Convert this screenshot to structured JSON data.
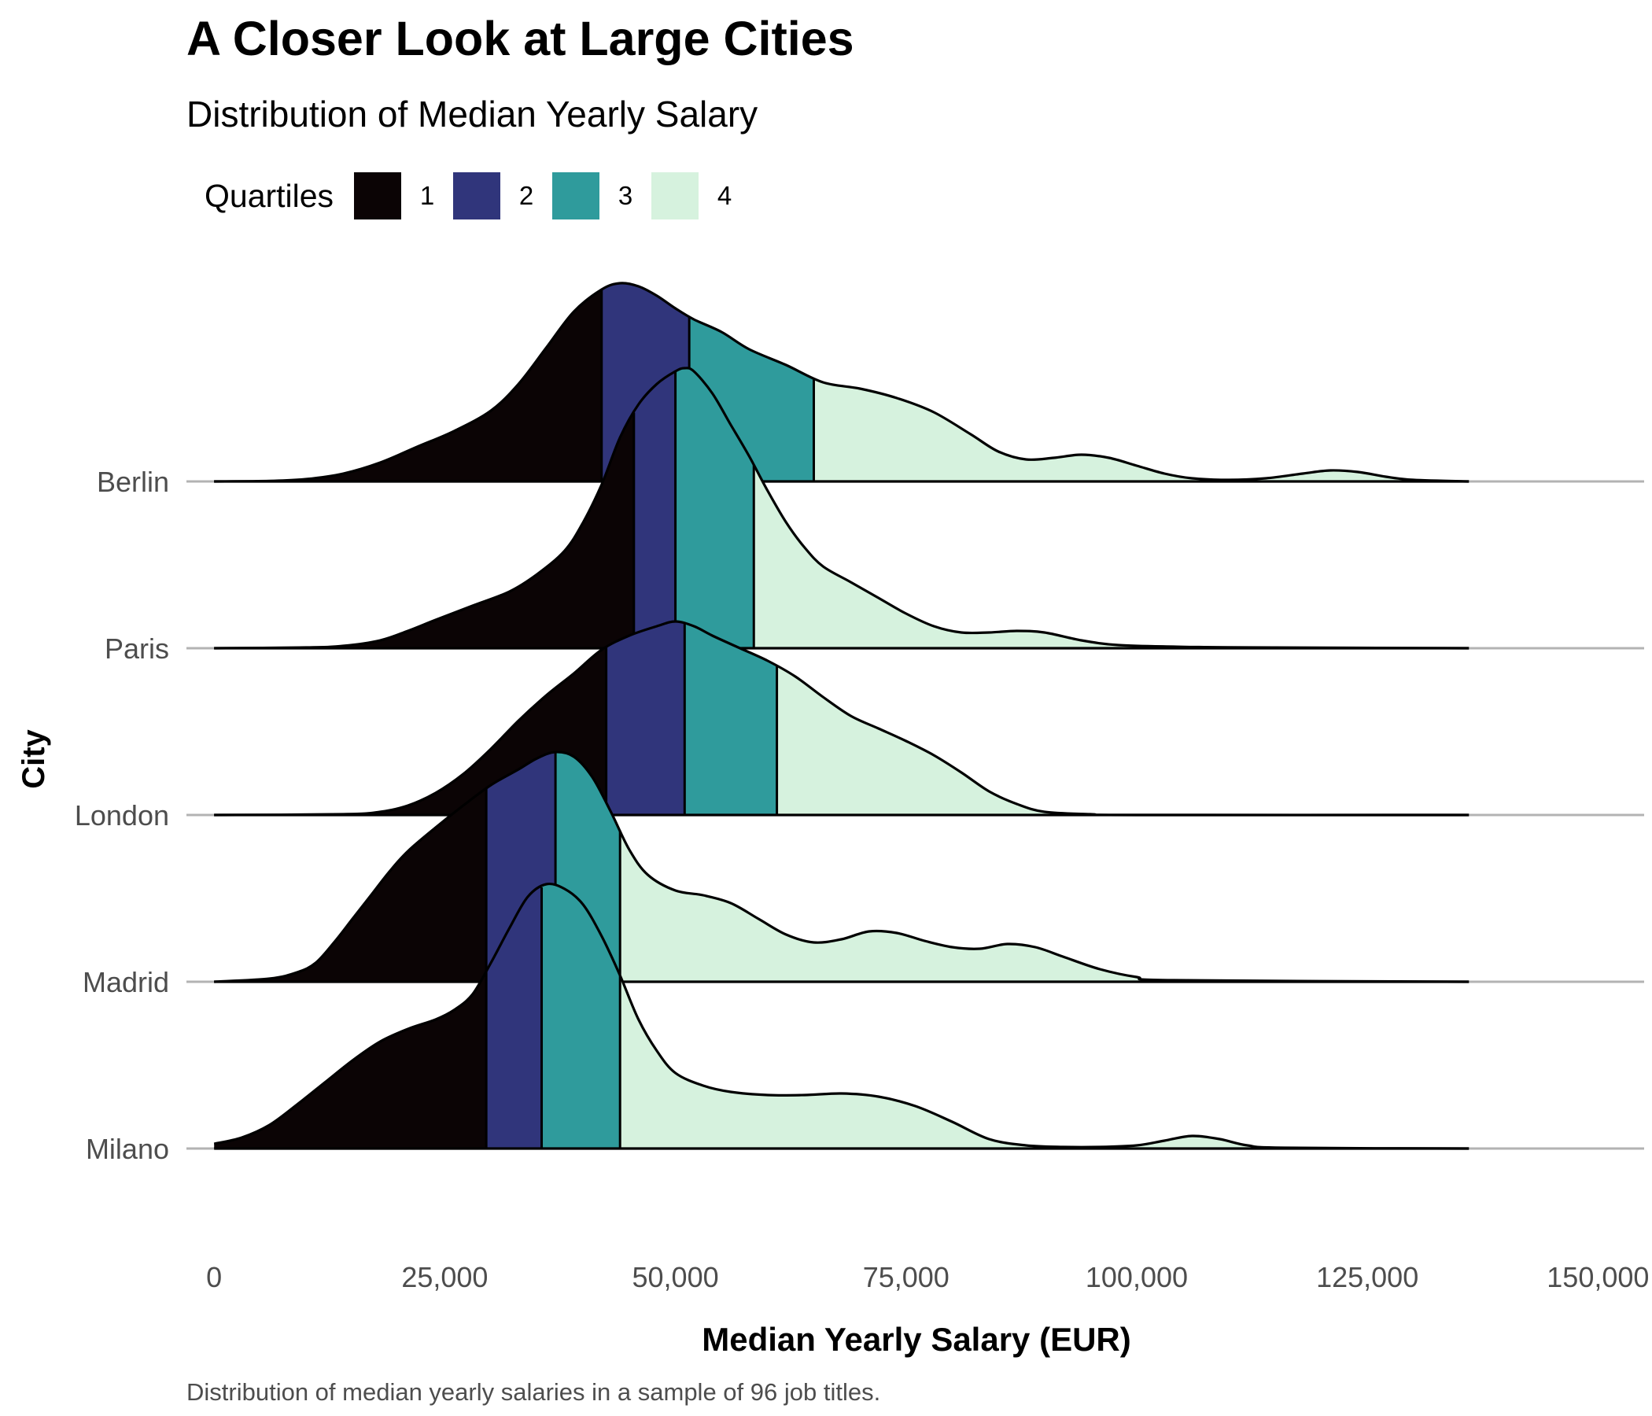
{
  "header": {
    "title": "A Closer Look at Large Cities",
    "subtitle": "Distribution of Median Yearly Salary"
  },
  "legend": {
    "title": "Quartiles",
    "items": [
      {
        "label": "1",
        "color": "#0b0405"
      },
      {
        "label": "2",
        "color": "#30357b"
      },
      {
        "label": "3",
        "color": "#2f9b9c"
      },
      {
        "label": "4",
        "color": "#d6f2de"
      }
    ]
  },
  "caption": "Distribution of median yearly salaries in a sample of 96 job titles.",
  "chart_data": {
    "type": "ridgeline",
    "title": "A Closer Look at Large Cities",
    "subtitle": "Distribution of Median Yearly Salary",
    "xlabel": "Median Yearly Salary (EUR)",
    "ylabel": "City",
    "xlim": [
      -3000,
      155000
    ],
    "x_ticks": [
      0,
      25000,
      50000,
      75000,
      100000,
      125000,
      150000
    ],
    "x_tick_labels": [
      "0",
      "25,000",
      "50,000",
      "75,000",
      "100,000",
      "125,000",
      "150,000"
    ],
    "density_range": [
      0,
      136000
    ],
    "categories": [
      "Milano",
      "Madrid",
      "London",
      "Paris",
      "Berlin"
    ],
    "series": [
      {
        "name": "Berlin",
        "quartile_breaks": [
          42000,
          51500,
          65000
        ],
        "density": [
          [
            0,
            0
          ],
          [
            6000,
            0.3
          ],
          [
            10000,
            1.5
          ],
          [
            14000,
            5
          ],
          [
            18000,
            12
          ],
          [
            22000,
            22
          ],
          [
            26000,
            32
          ],
          [
            30000,
            45
          ],
          [
            33000,
            62
          ],
          [
            36000,
            85
          ],
          [
            39000,
            108
          ],
          [
            42000,
            122
          ],
          [
            44000,
            126
          ],
          [
            46000,
            124
          ],
          [
            48000,
            118
          ],
          [
            50000,
            110
          ],
          [
            52000,
            103
          ],
          [
            55000,
            95
          ],
          [
            58000,
            84
          ],
          [
            62000,
            74
          ],
          [
            66000,
            63
          ],
          [
            70000,
            59
          ],
          [
            74000,
            53
          ],
          [
            78000,
            44
          ],
          [
            82000,
            30
          ],
          [
            85000,
            19
          ],
          [
            88000,
            14
          ],
          [
            91000,
            15
          ],
          [
            94000,
            17
          ],
          [
            97000,
            15
          ],
          [
            100000,
            10
          ],
          [
            103000,
            5
          ],
          [
            106000,
            2
          ],
          [
            110000,
            1
          ],
          [
            114000,
            2
          ],
          [
            118000,
            5
          ],
          [
            121000,
            7
          ],
          [
            124000,
            6
          ],
          [
            127000,
            3
          ],
          [
            130000,
            1
          ],
          [
            136000,
            0
          ]
        ]
      },
      {
        "name": "Paris",
        "quartile_breaks": [
          45500,
          50000,
          58500
        ],
        "density": [
          [
            0,
            0
          ],
          [
            10000,
            0.5
          ],
          [
            14000,
            1.5
          ],
          [
            18000,
            5
          ],
          [
            21000,
            11
          ],
          [
            24000,
            18
          ],
          [
            28000,
            27
          ],
          [
            32000,
            36
          ],
          [
            35000,
            47
          ],
          [
            38000,
            62
          ],
          [
            40000,
            80
          ],
          [
            42000,
            104
          ],
          [
            44000,
            134
          ],
          [
            46000,
            155
          ],
          [
            48000,
            168
          ],
          [
            50000,
            176
          ],
          [
            51000,
            178
          ],
          [
            52000,
            176
          ],
          [
            54000,
            162
          ],
          [
            56000,
            142
          ],
          [
            58000,
            122
          ],
          [
            60000,
            100
          ],
          [
            62000,
            80
          ],
          [
            64000,
            64
          ],
          [
            66000,
            52
          ],
          [
            69000,
            42
          ],
          [
            72000,
            32
          ],
          [
            75000,
            22
          ],
          [
            78000,
            14
          ],
          [
            81000,
            10
          ],
          [
            84000,
            10
          ],
          [
            87000,
            11
          ],
          [
            90000,
            10
          ],
          [
            94000,
            5
          ],
          [
            98000,
            2
          ],
          [
            104000,
            1
          ],
          [
            112000,
            0.5
          ],
          [
            136000,
            0
          ]
        ]
      },
      {
        "name": "London",
        "quartile_breaks": [
          42500,
          51000,
          61000
        ],
        "density": [
          [
            0,
            0
          ],
          [
            14000,
            0.5
          ],
          [
            18000,
            2
          ],
          [
            21000,
            6
          ],
          [
            24000,
            14
          ],
          [
            27000,
            26
          ],
          [
            30000,
            42
          ],
          [
            33000,
            60
          ],
          [
            36000,
            76
          ],
          [
            39000,
            90
          ],
          [
            42000,
            105
          ],
          [
            45000,
            114
          ],
          [
            48000,
            120
          ],
          [
            50000,
            123
          ],
          [
            52000,
            120
          ],
          [
            54000,
            114
          ],
          [
            57000,
            106
          ],
          [
            60000,
            98
          ],
          [
            63000,
            88
          ],
          [
            66000,
            75
          ],
          [
            69000,
            63
          ],
          [
            72000,
            55
          ],
          [
            75000,
            47
          ],
          [
            78000,
            38
          ],
          [
            81000,
            27
          ],
          [
            84000,
            15
          ],
          [
            87000,
            7
          ],
          [
            90000,
            2
          ],
          [
            95000,
            0.5
          ],
          [
            100000,
            0
          ],
          [
            136000,
            0
          ]
        ]
      },
      {
        "name": "Madrid",
        "quartile_breaks": [
          29500,
          37000,
          44000
        ],
        "density": [
          [
            0,
            0
          ],
          [
            6000,
            2
          ],
          [
            9000,
            6
          ],
          [
            11000,
            12
          ],
          [
            13000,
            25
          ],
          [
            15000,
            40
          ],
          [
            17000,
            55
          ],
          [
            19000,
            70
          ],
          [
            21000,
            83
          ],
          [
            24000,
            98
          ],
          [
            27000,
            112
          ],
          [
            30000,
            125
          ],
          [
            33000,
            135
          ],
          [
            35000,
            142
          ],
          [
            37000,
            146
          ],
          [
            39000,
            143
          ],
          [
            41000,
            130
          ],
          [
            43000,
            108
          ],
          [
            45000,
            84
          ],
          [
            47000,
            68
          ],
          [
            50000,
            58
          ],
          [
            53000,
            55
          ],
          [
            56000,
            50
          ],
          [
            59000,
            40
          ],
          [
            62000,
            30
          ],
          [
            65000,
            25
          ],
          [
            68000,
            27
          ],
          [
            71000,
            32
          ],
          [
            74000,
            31
          ],
          [
            77000,
            26
          ],
          [
            80000,
            22
          ],
          [
            83000,
            21
          ],
          [
            86000,
            24
          ],
          [
            89000,
            22
          ],
          [
            92000,
            16
          ],
          [
            96000,
            8
          ],
          [
            100000,
            3
          ],
          [
            104000,
            1
          ],
          [
            136000,
            0
          ]
        ]
      },
      {
        "name": "Milano",
        "quartile_breaks": [
          29500,
          35500,
          44000
        ],
        "density": [
          [
            0,
            3
          ],
          [
            3000,
            7
          ],
          [
            6000,
            15
          ],
          [
            9000,
            28
          ],
          [
            12000,
            42
          ],
          [
            15000,
            56
          ],
          [
            18000,
            68
          ],
          [
            21000,
            76
          ],
          [
            24000,
            82
          ],
          [
            26000,
            88
          ],
          [
            28000,
            98
          ],
          [
            30000,
            118
          ],
          [
            32000,
            140
          ],
          [
            34000,
            160
          ],
          [
            36000,
            168
          ],
          [
            38000,
            165
          ],
          [
            40000,
            155
          ],
          [
            42000,
            135
          ],
          [
            44000,
            110
          ],
          [
            46000,
            82
          ],
          [
            48000,
            62
          ],
          [
            50000,
            48
          ],
          [
            53000,
            40
          ],
          [
            56000,
            36
          ],
          [
            60000,
            34
          ],
          [
            64000,
            34
          ],
          [
            68000,
            35
          ],
          [
            72000,
            33
          ],
          [
            76000,
            27
          ],
          [
            80000,
            17
          ],
          [
            84000,
            6
          ],
          [
            88000,
            2
          ],
          [
            92000,
            1
          ],
          [
            96000,
            1
          ],
          [
            100000,
            2
          ],
          [
            103000,
            5
          ],
          [
            106000,
            8
          ],
          [
            109000,
            6
          ],
          [
            112000,
            2
          ],
          [
            116000,
            0.5
          ],
          [
            136000,
            0
          ]
        ]
      }
    ]
  }
}
